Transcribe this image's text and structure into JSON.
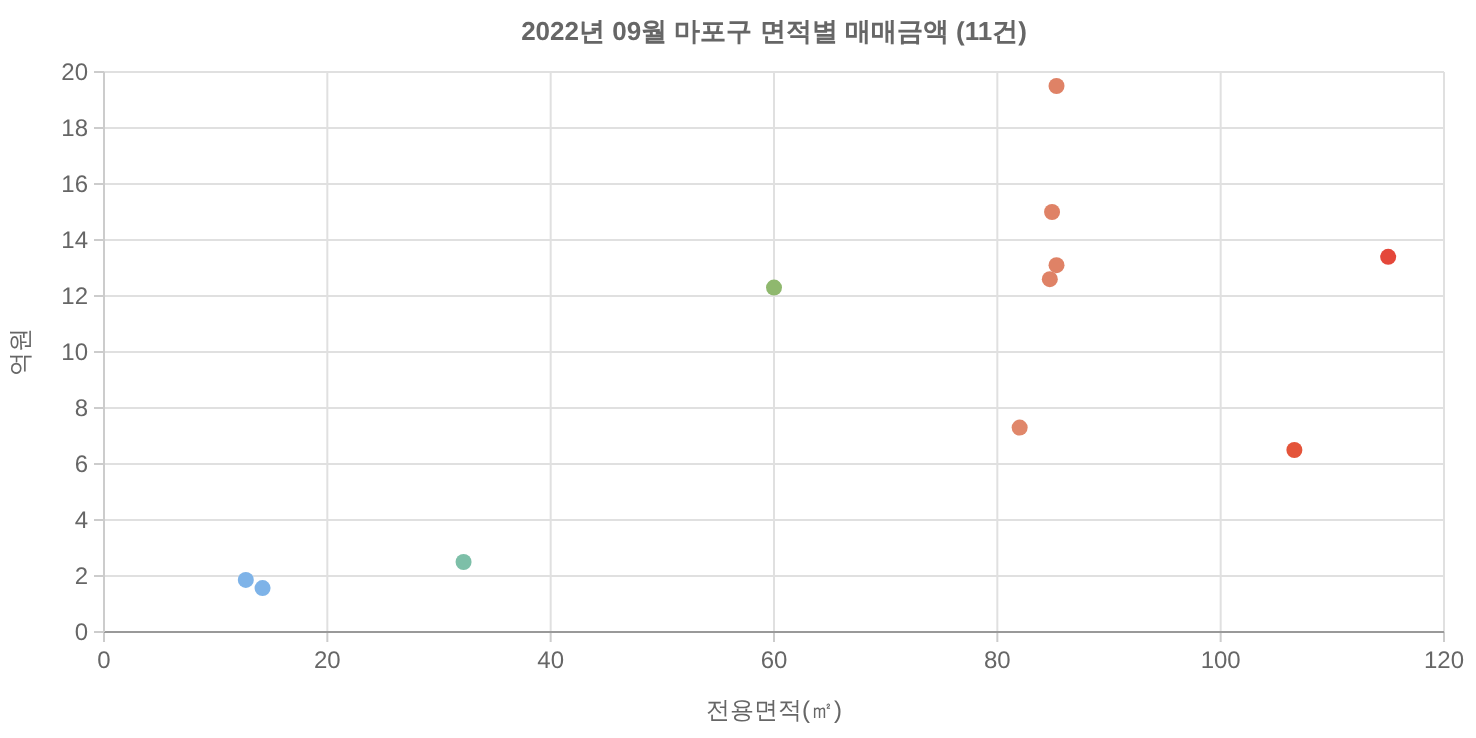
{
  "chart_data": {
    "type": "scatter",
    "title": "2022년 09월 마포구 면적별 매매금액 (11건)",
    "xlabel": "전용면적(㎡)",
    "ylabel": "억원",
    "x": [
      12.7,
      14.2,
      32.2,
      60.0,
      82.0,
      84.7,
      85.3,
      84.9,
      85.3,
      106.6,
      115.0
    ],
    "values": [
      1.86,
      1.57,
      2.5,
      12.3,
      7.3,
      12.6,
      13.1,
      15.0,
      19.5,
      6.5,
      13.4
    ],
    "colors": [
      "#7eb3e8",
      "#7eb3e8",
      "#7dbfa8",
      "#8fb86e",
      "#e0876a",
      "#df8266",
      "#df8266",
      "#df8266",
      "#df8266",
      "#e4543a",
      "#e4473a"
    ],
    "xlim": [
      0,
      120
    ],
    "xticks": [
      0,
      20,
      40,
      60,
      80,
      100,
      120
    ],
    "ylim": [
      0,
      20
    ],
    "yticks": [
      0,
      2,
      4,
      6,
      8,
      10,
      12,
      14,
      16,
      18,
      20
    ],
    "grid": true,
    "marker": "circle"
  }
}
